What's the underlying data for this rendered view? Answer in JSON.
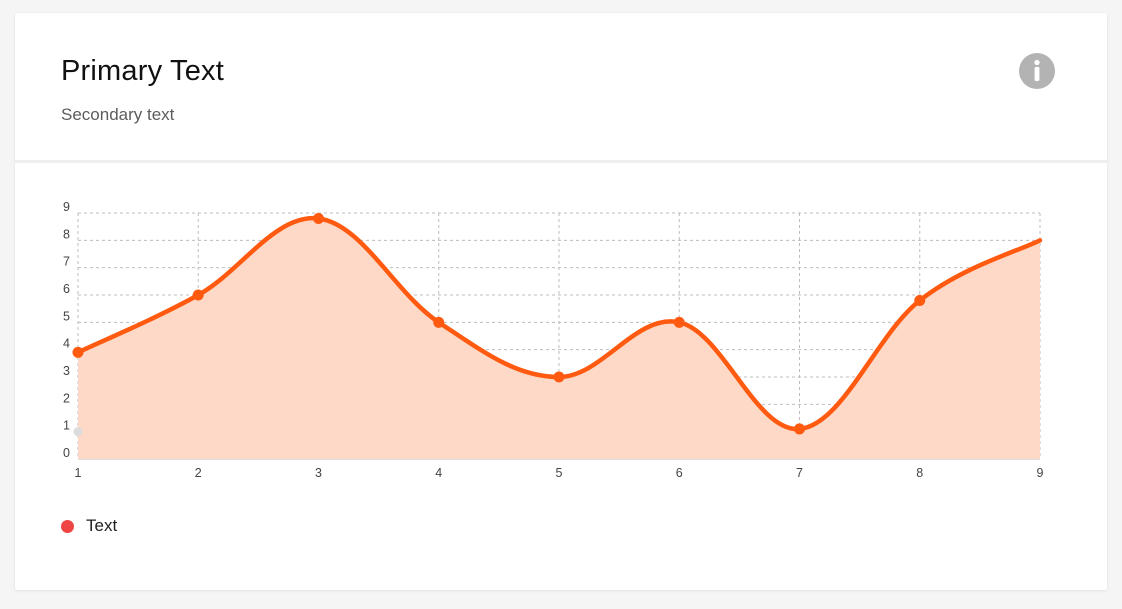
{
  "card": {
    "title": "Primary Text",
    "subtitle": "Secondary text"
  },
  "icons": {
    "info": "info-circle-icon"
  },
  "colors": {
    "line": "#ff5a10",
    "area": "#ffd9c8",
    "legend_dot": "#f04545",
    "grid": "#bdbdbd",
    "info_icon": "#b3b3b3"
  },
  "legend": [
    {
      "label": "Text"
    }
  ],
  "chart_data": {
    "type": "area",
    "x": [
      1,
      2,
      3,
      4,
      5,
      6,
      7,
      8,
      9
    ],
    "series": [
      {
        "values": [
          3.9,
          6.0,
          8.8,
          5.0,
          3.0,
          5.0,
          1.1,
          5.8,
          8.0
        ]
      }
    ],
    "x_ticks": [
      "1",
      "2",
      "3",
      "4",
      "5",
      "6",
      "7",
      "8",
      "9"
    ],
    "y_ticks": [
      "0",
      "1",
      "2",
      "3",
      "4",
      "5",
      "6",
      "7",
      "8",
      "9"
    ],
    "xlim": [
      1,
      9
    ],
    "ylim": [
      0,
      9
    ],
    "grid": true,
    "curve": "smooth",
    "legend_position": "bottom-left"
  }
}
